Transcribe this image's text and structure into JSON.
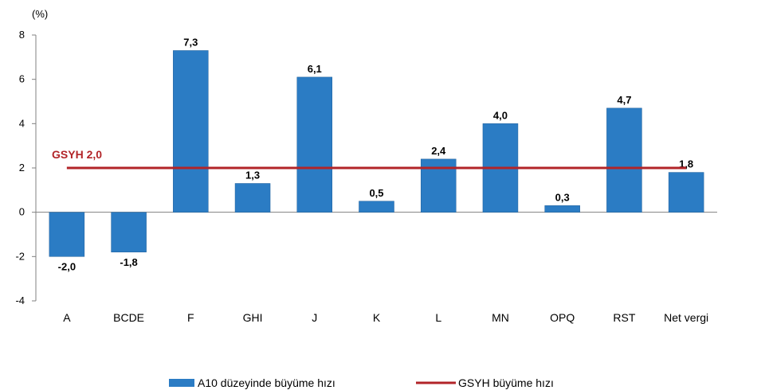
{
  "chart_data": {
    "type": "bar",
    "unit_label": "(%)",
    "categories": [
      "A",
      "BCDE",
      "F",
      "GHI",
      "J",
      "K",
      "L",
      "MN",
      "OPQ",
      "RST",
      "Net vergi"
    ],
    "series": [
      {
        "name": "A10 düzeyinde büyüme hızı",
        "values": [
          -2.0,
          -1.8,
          7.3,
          1.3,
          6.1,
          0.5,
          2.4,
          4.0,
          0.3,
          4.7,
          1.8
        ],
        "labels": [
          "-2,0",
          "-1,8",
          "7,3",
          "1,3",
          "6,1",
          "0,5",
          "2,4",
          "4,0",
          "0,3",
          "4,7",
          "1,8"
        ],
        "color": "#2B7CC4"
      }
    ],
    "reference_line": {
      "name": "GSYH büyüme hızı",
      "value": 2.0,
      "label": "GSYH 2,0",
      "color": "#B22428"
    },
    "ylim": [
      -4,
      8
    ],
    "yticks": [
      -4,
      -2,
      0,
      2,
      4,
      6,
      8
    ],
    "ytick_labels": [
      "-4",
      "-2",
      "0",
      "2",
      "4",
      "6",
      "8"
    ],
    "grid": false,
    "legend_position": "bottom"
  }
}
